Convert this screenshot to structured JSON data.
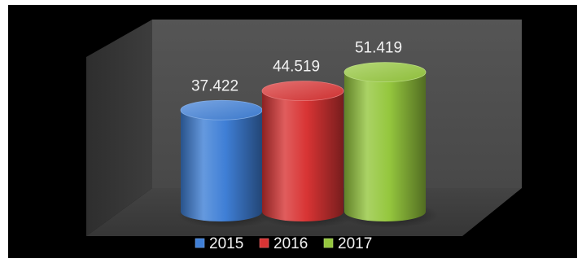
{
  "chart_data": {
    "type": "bar",
    "style": "3d-cylinder",
    "title": "",
    "xlabel": "",
    "ylabel": "",
    "categories": [
      "2015",
      "2016",
      "2017"
    ],
    "values": [
      37.422,
      44.519,
      51.419
    ],
    "value_labels": [
      "37.422",
      "44.519",
      "51.419"
    ],
    "colors": [
      "#3f7fd6",
      "#d83434",
      "#95c73e"
    ],
    "legend_position": "bottom",
    "grid": false,
    "background": "#000000",
    "plot_wall_color": "#4f4f4f",
    "plot_floor_color": "#3b3b3b",
    "ylim": [
      0,
      60
    ]
  }
}
